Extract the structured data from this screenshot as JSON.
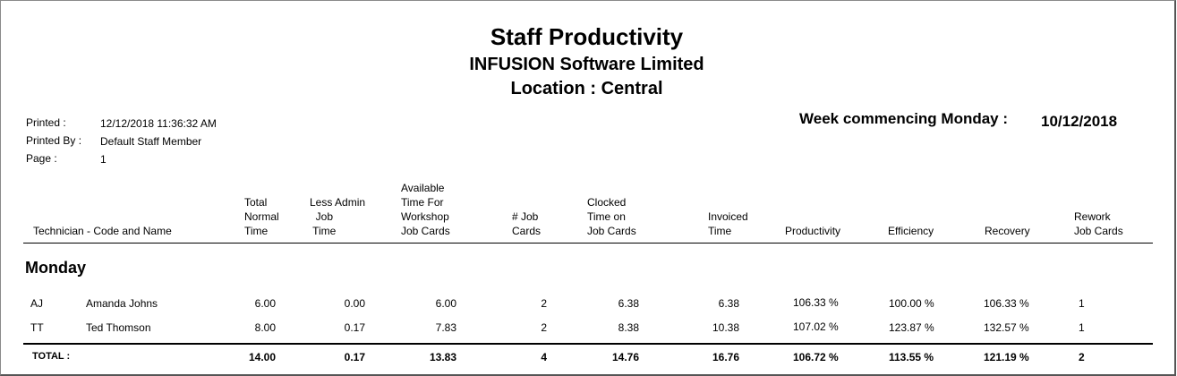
{
  "report": {
    "title": "Staff Productivity",
    "company": "INFUSION Software Limited",
    "location": "Location : Central"
  },
  "meta": {
    "printed_label": "Printed :",
    "printed_value": "12/12/2018 11:36:32 AM",
    "printed_by_label": "Printed By :",
    "printed_by_value": "Default Staff Member",
    "page_label": "Page :",
    "page_value": "1"
  },
  "week": {
    "label": "Week commencing Monday :",
    "date": "10/12/2018"
  },
  "columns": {
    "technician": "Technician - Code and Name",
    "total_normal": "Total\nNormal\nTime",
    "less_admin": "Less Admin\n  Job\n Time",
    "available": "Available\nTime For\nWorkshop\nJob Cards",
    "job_cards": "# Job\nCards",
    "clocked": "Clocked\nTime on\nJob Cards",
    "invoiced": "Invoiced\nTime",
    "productivity": "Productivity",
    "efficiency": "Efficiency",
    "recovery": "Recovery",
    "rework": "Rework\nJob Cards"
  },
  "group": {
    "day": "Monday"
  },
  "rows": [
    {
      "code": "AJ",
      "name": "Amanda Johns",
      "total": "6.00",
      "admin": "0.00",
      "available": "6.00",
      "cards": "2",
      "clocked": "6.38",
      "invoiced": "6.38",
      "productivity": "106.33 %",
      "efficiency": "100.00 %",
      "recovery": "106.33 %",
      "rework": "1"
    },
    {
      "code": "TT",
      "name": "Ted Thomson",
      "total": "8.00",
      "admin": "0.17",
      "available": "7.83",
      "cards": "2",
      "clocked": "8.38",
      "invoiced": "10.38",
      "productivity": "107.02 %",
      "efficiency": "123.87 %",
      "recovery": "132.57 %",
      "rework": "1"
    }
  ],
  "totals": {
    "label": "TOTAL :",
    "total": "14.00",
    "admin": "0.17",
    "available": "13.83",
    "cards": "4",
    "clocked": "14.76",
    "invoiced": "16.76",
    "productivity": "106.72 %",
    "efficiency": "113.55 %",
    "recovery": "121.19 %",
    "rework": "2"
  }
}
